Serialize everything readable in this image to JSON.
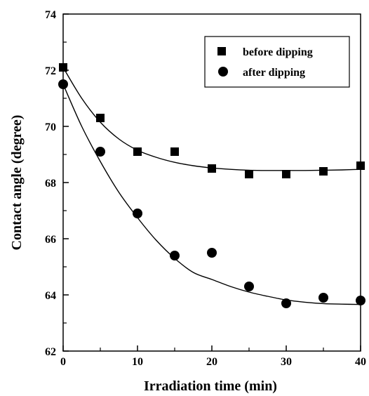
{
  "chart_data": {
    "type": "scatter",
    "xlabel": "Irradiation time (min)",
    "ylabel": "Contact angle (degree)",
    "xlim": [
      0,
      40
    ],
    "ylim": [
      62,
      74
    ],
    "xticks": [
      "0",
      "10",
      "20",
      "30",
      "40"
    ],
    "yticks": [
      "62",
      "64",
      "66",
      "68",
      "70",
      "72",
      "74"
    ],
    "grid": false,
    "legend_position": "top-right",
    "series": [
      {
        "name": "before dipping",
        "marker": "square",
        "x": [
          0,
          5,
          10,
          15,
          20,
          25,
          30,
          35,
          40
        ],
        "y": [
          72.1,
          70.3,
          69.1,
          69.1,
          68.5,
          68.3,
          68.3,
          68.4,
          68.6
        ],
        "fit_curve": {
          "x": [
            0,
            2.5,
            5,
            7.5,
            10,
            12.5,
            15,
            17.5,
            20,
            22.5,
            25,
            27.5,
            30,
            32.5,
            35,
            37.5,
            40
          ],
          "y": [
            72.1,
            71.0,
            70.15,
            69.55,
            69.15,
            68.9,
            68.72,
            68.6,
            68.52,
            68.47,
            68.44,
            68.43,
            68.43,
            68.43,
            68.44,
            68.45,
            68.47
          ]
        }
      },
      {
        "name": "after dipping",
        "marker": "circle",
        "x": [
          0,
          5,
          10,
          15,
          20,
          25,
          30,
          35,
          40
        ],
        "y": [
          71.5,
          69.1,
          66.9,
          65.4,
          65.5,
          64.3,
          63.7,
          63.9,
          63.8
        ],
        "fit_curve": {
          "x": [
            0,
            2.5,
            5,
            7.5,
            10,
            12.5,
            15,
            17.5,
            20,
            22.5,
            25,
            27.5,
            30,
            32.5,
            35,
            37.5,
            40
          ],
          "y": [
            71.5,
            70.0,
            68.75,
            67.65,
            66.75,
            65.95,
            65.3,
            64.8,
            64.55,
            64.3,
            64.1,
            63.95,
            63.82,
            63.74,
            63.69,
            63.67,
            63.66
          ]
        }
      }
    ]
  },
  "colors": {
    "ink": "#000000",
    "background": "#ffffff"
  }
}
